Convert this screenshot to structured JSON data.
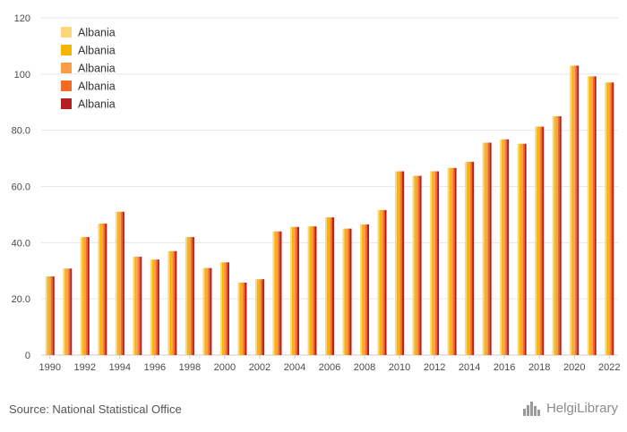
{
  "chart_data": {
    "type": "bar",
    "categories": [
      "1990",
      "1991",
      "1992",
      "1993",
      "1994",
      "1995",
      "1996",
      "1997",
      "1998",
      "1999",
      "2000",
      "2001",
      "2002",
      "2003",
      "2004",
      "2005",
      "2006",
      "2007",
      "2008",
      "2009",
      "2010",
      "2011",
      "2012",
      "2013",
      "2014",
      "2015",
      "2016",
      "2017",
      "2018",
      "2019",
      "2020",
      "2021",
      "2022"
    ],
    "x_tick_labels": [
      "1990",
      "1992",
      "1994",
      "1996",
      "1998",
      "2000",
      "2002",
      "2004",
      "2006",
      "2008",
      "2010",
      "2012",
      "2014",
      "2016",
      "2018",
      "2020",
      "2022"
    ],
    "y_tick_labels": [
      "0",
      "20.0",
      "40.0",
      "60.0",
      "80.0",
      "100",
      "120"
    ],
    "y_ticks": [
      0,
      20,
      40,
      60,
      80,
      100,
      120
    ],
    "ylim": [
      0,
      120
    ],
    "grid": "horizontal",
    "legend_position": "top-left",
    "series": [
      {
        "name": "Albania",
        "color": "#fdd67a",
        "values": [
          28,
          30.8,
          42,
          46.8,
          51,
          35,
          34,
          37,
          42,
          31,
          33,
          25.8,
          27,
          44,
          45.6,
          45.8,
          49,
          45,
          46.5,
          51.6,
          65.4,
          63.8,
          65.4,
          66.6,
          68.8,
          75.6,
          76.8,
          75.2,
          81.3,
          85,
          103,
          99.2,
          97
        ]
      },
      {
        "name": "Albania",
        "color": "#f7b500",
        "values": [
          28,
          30.8,
          42,
          46.8,
          51,
          35,
          34,
          37,
          42,
          31,
          33,
          25.8,
          27,
          44,
          45.6,
          45.8,
          49,
          45,
          46.5,
          51.6,
          65.4,
          63.8,
          65.4,
          66.6,
          68.8,
          75.6,
          76.8,
          75.2,
          81.3,
          85,
          103,
          99.2,
          97
        ]
      },
      {
        "name": "Albania",
        "color": "#fc9e47",
        "values": [
          28,
          30.8,
          42,
          46.8,
          51,
          35,
          34,
          37,
          42,
          31,
          33,
          25.8,
          27,
          44,
          45.6,
          45.8,
          49,
          45,
          46.5,
          51.6,
          65.4,
          63.8,
          65.4,
          66.6,
          68.8,
          75.6,
          76.8,
          75.2,
          81.3,
          85,
          103,
          99.2,
          97
        ]
      },
      {
        "name": "Albania",
        "color": "#f36a22",
        "values": [
          28,
          30.8,
          42,
          46.8,
          51,
          35,
          34,
          37,
          42,
          31,
          33,
          25.8,
          27,
          44,
          45.6,
          45.8,
          49,
          45,
          46.5,
          51.6,
          65.4,
          63.8,
          65.4,
          66.6,
          68.8,
          75.6,
          76.8,
          75.2,
          81.3,
          85,
          103,
          99.2,
          97
        ]
      },
      {
        "name": "Albania",
        "color": "#b41f24",
        "values": [
          28,
          30.8,
          42,
          46.8,
          51,
          35,
          34,
          37,
          42,
          31,
          33,
          25.8,
          27,
          44,
          45.6,
          45.8,
          49,
          45,
          46.5,
          51.6,
          65.4,
          63.8,
          65.4,
          66.6,
          68.8,
          75.6,
          76.8,
          75.2,
          81.3,
          85,
          103,
          99.2,
          97
        ]
      }
    ]
  },
  "source": "Source: National Statistical Office",
  "logo": {
    "text": "HelgiLibrary",
    "icon": "library-logo-icon"
  },
  "colors": {
    "grid": "#e6e6e6",
    "axis": "#cccccc",
    "text": "#4a4a4a"
  }
}
